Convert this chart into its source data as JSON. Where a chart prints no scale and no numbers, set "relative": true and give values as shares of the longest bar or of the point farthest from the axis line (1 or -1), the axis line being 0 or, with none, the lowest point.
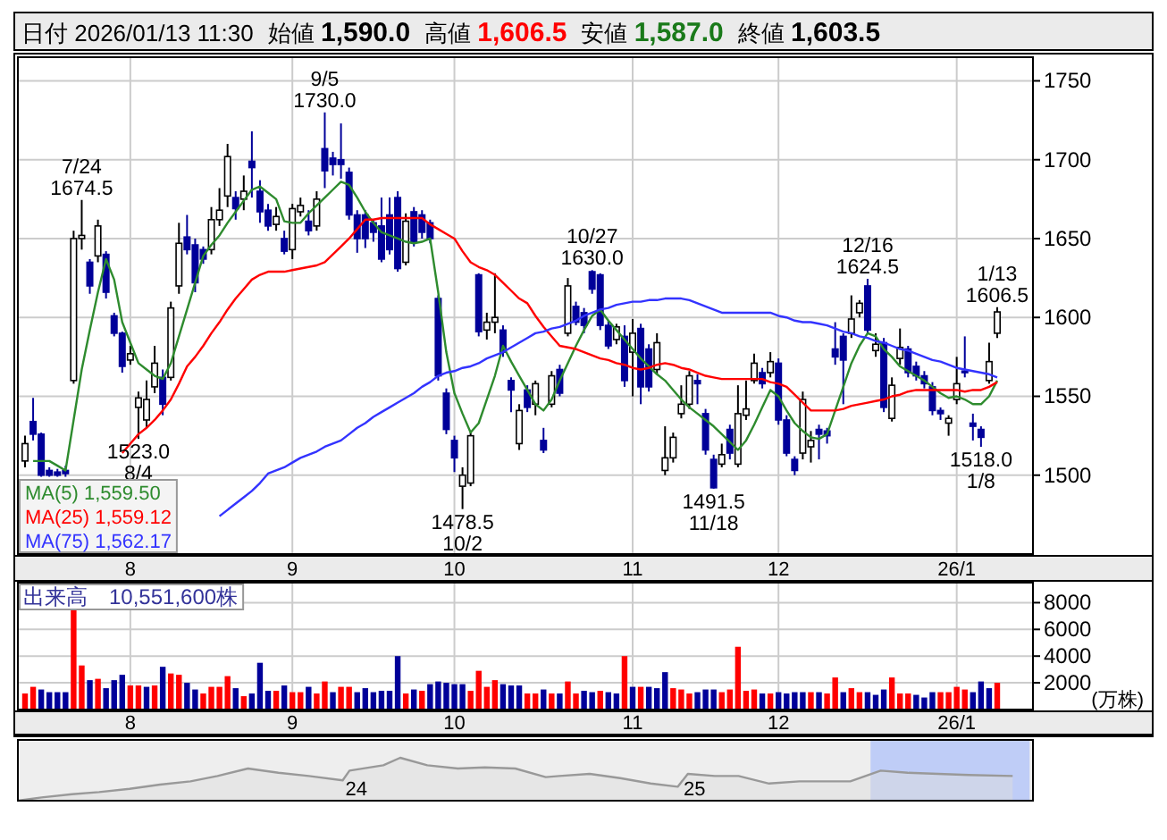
{
  "chart_data": [
    {
      "type": "candlestick",
      "title": "日付 2026/01/13 11:30",
      "annotations": [
        "始値 **1,590.0**",
        "高値 **1,606.5**",
        "安値 **1,587.0**",
        "終値 **1,603.5**",
        {
          "text": "7/24 1674.5",
          "y": 1674.5
        },
        {
          "text": "1523.0 8/4",
          "y": 1523
        },
        {
          "text": "9/5 1730.0",
          "y": 1730
        },
        {
          "text": "1478.5 10/2",
          "y": 1478.5
        },
        {
          "text": "10/27 1630.0",
          "y": 1630
        },
        {
          "text": "1491.5 11/18",
          "y": 1491.5
        },
        {
          "text": "12/16 1624.5",
          "y": 1624.5
        },
        {
          "text": "1518.0 1/8",
          "y": 1518
        },
        {
          "text": "1/13 1606.5",
          "y": 1606.5
        }
      ],
      "categories": [
        null,
        null,
        null,
        null,
        null,
        null,
        null,
        null,
        null,
        null,
        null,
        null,
        null,
        "8",
        null,
        null,
        null,
        null,
        null,
        null,
        null,
        null,
        null,
        null,
        null,
        null,
        null,
        null,
        null,
        null,
        null,
        null,
        null,
        "9",
        null,
        null,
        null,
        null,
        null,
        null,
        null,
        null,
        null,
        null,
        null,
        null,
        null,
        null,
        null,
        null,
        null,
        null,
        null,
        "10",
        null,
        null,
        null,
        null,
        null,
        null,
        null,
        null,
        null,
        null,
        null,
        null,
        null,
        null,
        null,
        null,
        null,
        null,
        null,
        null,
        null,
        "11",
        null,
        null,
        null,
        null,
        null,
        null,
        null,
        null,
        null,
        null,
        null,
        null,
        null,
        null,
        null,
        null,
        null,
        "12",
        null,
        null,
        null,
        null,
        null,
        null,
        null,
        null,
        null,
        null,
        null,
        null,
        null,
        null,
        null,
        null,
        null,
        null,
        null,
        null,
        null,
        "26/1",
        null,
        null,
        null,
        null,
        null
      ],
      "ylim": [
        1450,
        1765
      ],
      "yticks": [
        1500,
        1550,
        1600,
        1650,
        1700,
        1750
      ],
      "grid": true,
      "legend": "bottom left",
      "series": [
        {
          "colors": [
            "#ffffff",
            "#000099",
            "#000099",
            "#000099",
            "#000099",
            "#000099",
            "#ffffff",
            "#ffffff",
            "#000099",
            "#ffffff",
            "#000099",
            "#000099",
            "#000099",
            "#ffffff",
            "#ffffff",
            "#ffffff",
            "#ffffff",
            "#000099",
            "#ffffff",
            "#ffffff",
            "#000099",
            "#000099",
            "#000099",
            "#ffffff",
            "#ffffff",
            "#ffffff",
            "#000099",
            "#ffffff",
            "#000099",
            "#000099",
            "#000099",
            "#ffffff",
            "#000099",
            "#ffffff",
            "#ffffff",
            "#000099",
            "#ffffff",
            "#000099",
            "#000099",
            "#000099",
            "#000099",
            "#000099",
            "#000099",
            "#000099",
            "#000099",
            "#000099",
            "#000099",
            "#ffffff",
            "#000099",
            "#000099",
            "#000099",
            "#000099",
            "#000099",
            "#000099",
            "#ffffff",
            "#ffffff",
            "#000099",
            "#ffffff",
            "#ffffff",
            "#000099",
            "#000099",
            "#ffffff",
            "#000099",
            "#ffffff",
            "#000099",
            "#ffffff",
            "#000099",
            "#ffffff",
            "#000099",
            "#000099",
            "#000099",
            "#000099",
            "#000099",
            "#ffffff",
            "#000099",
            "#ffffff",
            "#000099",
            "#000099",
            "#ffffff",
            "#ffffff",
            "#ffffff",
            "#ffffff",
            "#ffffff",
            "#000099",
            "#000099",
            "#000099",
            "#ffffff",
            "#000099",
            "#ffffff",
            "#ffffff",
            "#ffffff",
            "#000099",
            "#ffffff",
            "#000099",
            "#000099",
            "#000099",
            "#ffffff",
            "#ffffff",
            "#000099",
            "#000099",
            "#000099",
            "#000099",
            "#ffffff",
            "#ffffff",
            "#000099",
            "#ffffff",
            "#000099",
            "#ffffff",
            "#ffffff",
            "#000099",
            "#000099",
            "#000099",
            "#000099",
            "#000099",
            "#ffffff",
            "#ffffff",
            "#000099",
            "#000099",
            "#000099",
            "#ffffff",
            "#ffffff"
          ],
          "ohlc": [
            [
              1509,
              1525,
              1505,
              1520
            ],
            [
              1534,
              1549,
              1522,
              1526
            ],
            [
              1526,
              1527,
              1499,
              1500
            ],
            [
              1503,
              1505,
              1499,
              1500
            ],
            [
              1502,
              1504,
              1499,
              1500
            ],
            [
              1503,
              1506,
              1499,
              1501
            ],
            [
              1560,
              1655,
              1558,
              1650
            ],
            [
              1650,
              1674.5,
              1643,
              1652
            ],
            [
              1635,
              1637,
              1615,
              1620
            ],
            [
              1639,
              1662,
              1635,
              1658
            ],
            [
              1640,
              1642,
              1612,
              1616
            ],
            [
              1601,
              1603,
              1588,
              1590
            ],
            [
              1590,
              1591,
              1565,
              1569
            ],
            [
              1573,
              1582,
              1570,
              1577
            ],
            [
              1543,
              1553,
              1523,
              1549
            ],
            [
              1535,
              1560,
              1530,
              1548
            ],
            [
              1556,
              1582,
              1552,
              1571
            ],
            [
              1562,
              1567,
              1538,
              1545
            ],
            [
              1562,
              1610,
              1560,
              1606
            ],
            [
              1620,
              1660,
              1615,
              1647
            ],
            [
              1651,
              1665,
              1640,
              1643
            ],
            [
              1646,
              1650,
              1616,
              1622
            ],
            [
              1643,
              1645,
              1634,
              1637
            ],
            [
              1643,
              1670,
              1640,
              1662
            ],
            [
              1662,
              1682,
              1658,
              1668
            ],
            [
              1677,
              1710,
              1670,
              1702
            ],
            [
              1676,
              1680,
              1662,
              1669
            ],
            [
              1675,
              1690,
              1668,
              1680
            ],
            [
              1699,
              1718,
              1676,
              1695
            ],
            [
              1680,
              1687,
              1660,
              1667
            ],
            [
              1668,
              1672,
              1655,
              1658
            ],
            [
              1659,
              1670,
              1655,
              1664
            ],
            [
              1650,
              1655,
              1640,
              1642
            ],
            [
              1643,
              1672,
              1637,
              1669
            ],
            [
              1667,
              1676,
              1664,
              1671
            ],
            [
              1661,
              1668,
              1652,
              1655
            ],
            [
              1658,
              1680,
              1655,
              1675
            ],
            [
              1707,
              1730,
              1682,
              1693
            ],
            [
              1701,
              1705,
              1690,
              1697
            ],
            [
              1700,
              1723,
              1688,
              1697
            ],
            [
              1692,
              1695,
              1662,
              1665
            ],
            [
              1665,
              1668,
              1641,
              1650
            ],
            [
              1665,
              1668,
              1644,
              1650
            ],
            [
              1660,
              1662,
              1648,
              1654
            ],
            [
              1658,
              1676,
              1635,
              1637
            ],
            [
              1665,
              1676,
              1640,
              1643
            ],
            [
              1676,
              1680,
              1629,
              1631
            ],
            [
              1635,
              1666,
              1633,
              1661
            ],
            [
              1667,
              1670,
              1645,
              1648
            ],
            [
              1665,
              1668,
              1650,
              1654
            ],
            [
              1660,
              1662,
              1647,
              1650
            ],
            [
              1612,
              1614,
              1560,
              1563
            ],
            [
              1552,
              1555,
              1526,
              1529
            ],
            [
              1522,
              1525,
              1502,
              1511
            ],
            [
              1493,
              1505,
              1478.5,
              1500
            ],
            [
              1495,
              1527,
              1493,
              1525
            ],
            [
              1627,
              1628,
              1588,
              1591
            ],
            [
              1592,
              1603,
              1586,
              1597
            ],
            [
              1597,
              1628,
              1590,
              1600
            ],
            [
              1592,
              1595,
              1575,
              1578
            ],
            [
              1560,
              1562,
              1540,
              1554
            ],
            [
              1520,
              1545,
              1516,
              1541
            ],
            [
              1554,
              1557,
              1540,
              1543
            ],
            [
              1545,
              1560,
              1538,
              1558
            ],
            [
              1522,
              1530,
              1514,
              1516
            ],
            [
              1545,
              1566,
              1543,
              1563
            ],
            [
              1567,
              1570,
              1550,
              1552
            ],
            [
              1590,
              1625,
              1588,
              1620
            ],
            [
              1607,
              1610,
              1595,
              1597
            ],
            [
              1603,
              1606,
              1590,
              1595
            ],
            [
              1629,
              1630,
              1615,
              1618
            ],
            [
              1627,
              1628,
              1592,
              1595
            ],
            [
              1595,
              1598,
              1580,
              1582
            ],
            [
              1586,
              1596,
              1583,
              1594
            ],
            [
              1588,
              1595,
              1556,
              1560
            ],
            [
              1578,
              1599,
              1550,
              1590
            ],
            [
              1593,
              1596,
              1545,
              1556
            ],
            [
              1580,
              1583,
              1553,
              1556
            ],
            [
              1567,
              1590,
              1564,
              1584
            ],
            [
              1503,
              1531,
              1500,
              1511
            ],
            [
              1511,
              1527,
              1508,
              1524
            ],
            [
              1539,
              1557,
              1536,
              1545
            ],
            [
              1545,
              1566,
              1542,
              1563
            ],
            [
              1560,
              1564,
              1545,
              1558
            ],
            [
              1539,
              1542,
              1513,
              1516
            ],
            [
              1510,
              1513,
              1491.5,
              1492
            ],
            [
              1507,
              1520,
              1505,
              1513
            ],
            [
              1529,
              1532,
              1510,
              1514
            ],
            [
              1507,
              1557,
              1505,
              1539
            ],
            [
              1538,
              1560,
              1535,
              1542
            ],
            [
              1560,
              1577,
              1558,
              1571
            ],
            [
              1565,
              1568,
              1555,
              1558
            ],
            [
              1565,
              1578,
              1562,
              1572
            ],
            [
              1571,
              1574,
              1532,
              1535
            ],
            [
              1535,
              1538,
              1512,
              1514
            ],
            [
              1510,
              1512,
              1500,
              1503
            ],
            [
              1514,
              1553,
              1510,
              1548
            ],
            [
              1518,
              1528,
              1508,
              1522
            ],
            [
              1529,
              1532,
              1510,
              1526
            ],
            [
              1528,
              1530,
              1520,
              1525
            ],
            [
              1580,
              1597,
              1570,
              1575
            ],
            [
              1588,
              1590,
              1545,
              1573
            ],
            [
              1590,
              1614,
              1587,
              1599
            ],
            [
              1603,
              1611,
              1600,
              1609
            ],
            [
              1620,
              1624.5,
              1590,
              1592
            ],
            [
              1579,
              1590,
              1575,
              1583
            ],
            [
              1584,
              1587,
              1540,
              1543
            ],
            [
              1536,
              1562,
              1534,
              1557
            ],
            [
              1574,
              1593,
              1570,
              1581
            ],
            [
              1580,
              1582,
              1562,
              1565
            ],
            [
              1569,
              1572,
              1560,
              1563
            ],
            [
              1563,
              1566,
              1555,
              1558
            ],
            [
              1556,
              1559,
              1538,
              1541
            ],
            [
              1541,
              1543,
              1535,
              1539
            ],
            [
              1533,
              1538,
              1525,
              1536
            ],
            [
              1548,
              1575,
              1545,
              1558
            ],
            [
              1566,
              1588,
              1562,
              1565
            ],
            [
              1533,
              1539,
              1522,
              1531
            ],
            [
              1529,
              1531,
              1518,
              1524
            ],
            [
              1560,
              1584,
              1558,
              1572
            ],
            [
              1590,
              1606.5,
              1587,
              1603.5
            ]
          ]
        },
        {
          "type": "line",
          "name": "MA(5) 1,559.50",
          "color": "#2e8b2e",
          "values": [
            null,
            1509,
            1509,
            1509,
            1506,
            1503,
            1535,
            1567,
            1592,
            1616,
            1637,
            1624,
            1597,
            1584,
            1571,
            1567,
            1563,
            1561,
            1571,
            1588,
            1605,
            1622,
            1639,
            1646,
            1652,
            1660,
            1667,
            1674,
            1681,
            1683,
            1679,
            1675,
            1661,
            1660,
            1660,
            1666,
            1671,
            1676,
            1681,
            1686,
            1684,
            1676,
            1667,
            1660,
            1654,
            1652,
            1650,
            1648,
            1647,
            1648,
            1650,
            1616,
            1578,
            1552,
            1539,
            1527,
            1533,
            1548,
            1563,
            1582,
            1572,
            1563,
            1554,
            1545,
            1541,
            1548,
            1560,
            1571,
            1582,
            1592,
            1601,
            1605,
            1598,
            1592,
            1586,
            1580,
            1574,
            1569,
            1564,
            1560,
            1554,
            1548,
            1543,
            1539,
            1535,
            1531,
            1526,
            1521,
            1516,
            1522,
            1532,
            1543,
            1554,
            1550,
            1541,
            1533,
            1528,
            1524,
            1523,
            1526,
            1541,
            1556,
            1571,
            1582,
            1590,
            1588,
            1580,
            1575,
            1569,
            1566,
            1563,
            1560,
            1556,
            1552,
            1549,
            1550,
            1548,
            1545,
            1545,
            1550,
            1560
          ]
        },
        {
          "type": "line",
          "name": "MA(25) 1,559.12",
          "color": "#ff0000",
          "values": [
            null,
            null,
            null,
            null,
            null,
            null,
            null,
            null,
            null,
            null,
            null,
            null,
            1514,
            1520,
            1526,
            1530,
            1535,
            1541,
            1548,
            1558,
            1569,
            1575,
            1582,
            1590,
            1597,
            1605,
            1612,
            1618,
            1624,
            1627,
            1629,
            1629,
            1629,
            1630,
            1631,
            1632,
            1633,
            1635,
            1640,
            1645,
            1650,
            1656,
            1662,
            1662,
            1663,
            1663,
            1663,
            1663,
            1663,
            1663,
            1659,
            1656,
            1653,
            1650,
            1642,
            1635,
            1632,
            1630,
            1627,
            1622,
            1617,
            1612,
            1609,
            1601,
            1594,
            1588,
            1582,
            1581,
            1580,
            1578,
            1576,
            1574,
            1573,
            1571,
            1570,
            1568,
            1567,
            1568,
            1570,
            1571,
            1570,
            1568,
            1567,
            1565,
            1563,
            1562,
            1561,
            1561,
            1561,
            1561,
            1561,
            1561,
            1559,
            1558,
            1556,
            1551,
            1546,
            1541,
            1541,
            1541,
            1541,
            1542,
            1544,
            1545,
            1546,
            1547,
            1548,
            1550,
            1551,
            1553,
            1554,
            1554,
            1554,
            1554,
            1554,
            1554,
            1553,
            1554,
            1554,
            1556,
            1559
          ]
        },
        {
          "type": "line",
          "name": "MA(75) 1,562.17",
          "color": "#3333ff",
          "values": [
            null,
            null,
            null,
            null,
            null,
            null,
            null,
            null,
            null,
            null,
            null,
            null,
            null,
            null,
            null,
            null,
            null,
            null,
            null,
            null,
            null,
            null,
            null,
            null,
            1474,
            1478,
            1482,
            1486,
            1490,
            1495,
            1501,
            1503,
            1505,
            1508,
            1511,
            1513,
            1515,
            1518,
            1520,
            1522,
            1526,
            1530,
            1533,
            1537,
            1540,
            1543,
            1546,
            1549,
            1552,
            1556,
            1559,
            1563,
            1565,
            1566,
            1568,
            1569,
            1571,
            1574,
            1576,
            1578,
            1581,
            1584,
            1587,
            1590,
            1591,
            1593,
            1594,
            1596,
            1598,
            1601,
            1603,
            1605,
            1606,
            1608,
            1609,
            1610,
            1610,
            1611,
            1611,
            1612,
            1612,
            1612,
            1611,
            1609,
            1607,
            1605,
            1603,
            1603,
            1603,
            1603,
            1603,
            1603,
            1603,
            1601,
            1600,
            1598,
            1597,
            1597,
            1596,
            1595,
            1593,
            1591,
            1590,
            1588,
            1587,
            1585,
            1584,
            1582,
            1580,
            1579,
            1577,
            1575,
            1573,
            1572,
            1570,
            1568,
            1567,
            1566,
            1565,
            1564,
            1562
          ]
        }
      ]
    },
    {
      "type": "bar",
      "title": "出来高　10,551,600株",
      "ylabel": "(万株)",
      "categories": [
        null,
        null,
        null,
        null,
        null,
        null,
        null,
        null,
        null,
        null,
        null,
        null,
        null,
        "8",
        null,
        null,
        null,
        null,
        null,
        null,
        null,
        null,
        null,
        null,
        null,
        null,
        null,
        null,
        null,
        null,
        null,
        null,
        null,
        "9",
        null,
        null,
        null,
        null,
        null,
        null,
        null,
        null,
        null,
        null,
        null,
        null,
        null,
        null,
        null,
        null,
        null,
        null,
        null,
        "10",
        null,
        null,
        null,
        null,
        null,
        null,
        null,
        null,
        null,
        null,
        null,
        null,
        null,
        null,
        null,
        null,
        null,
        null,
        null,
        null,
        null,
        "11",
        null,
        null,
        null,
        null,
        null,
        null,
        null,
        null,
        null,
        null,
        null,
        null,
        null,
        null,
        null,
        null,
        null,
        "12",
        null,
        null,
        null,
        null,
        null,
        null,
        null,
        null,
        null,
        null,
        null,
        null,
        null,
        null,
        null,
        null,
        null,
        null,
        null,
        null,
        null,
        "26/1",
        null,
        null,
        null,
        null,
        null
      ],
      "ylim": [
        0,
        9500
      ],
      "yticks": [
        2000,
        4000,
        6000,
        8000
      ],
      "grid": true,
      "values": [
        1200,
        1700,
        1500,
        1300,
        1300,
        1300,
        7500,
        3300,
        2200,
        2300,
        1600,
        2200,
        2600,
        1800,
        1800,
        1700,
        1800,
        3200,
        2700,
        2600,
        2000,
        1500,
        1200,
        1700,
        1700,
        2500,
        1600,
        1000,
        1200,
        3500,
        1400,
        1400,
        1800,
        1300,
        1300,
        1700,
        1200,
        2100,
        1300,
        1700,
        1700,
        1300,
        1600,
        1300,
        1400,
        1400,
        4000,
        1200,
        1500,
        1400,
        1900,
        2100,
        2000,
        1900,
        1900,
        1400,
        2900,
        1700,
        2200,
        1900,
        1800,
        1800,
        1200,
        1200,
        1500,
        1200,
        1200,
        2100,
        1200,
        1400,
        1300,
        1400,
        1300,
        1200,
        4000,
        1700,
        1700,
        1700,
        1600,
        2800,
        1600,
        1500,
        1200,
        1300,
        1500,
        1500,
        1300,
        1500,
        4700,
        1400,
        1500,
        1200,
        1200,
        1300,
        1200,
        1300,
        1300,
        1300,
        1300,
        1200,
        2400,
        1300,
        1600,
        1300,
        1300,
        1100,
        1500,
        2400,
        1200,
        1200,
        1100,
        900,
        1300,
        1300,
        1300,
        1700,
        1500,
        1300,
        2100,
        1600,
        2000
      ],
      "colors": [
        "#ff0000",
        "#ff0000",
        "#000099",
        "#000099",
        "#000099",
        "#000099",
        "#ff0000",
        "#ff0000",
        "#000099",
        "#ff0000",
        "#000099",
        "#000099",
        "#000099",
        "#ff0000",
        "#ff0000",
        "#000099",
        "#ff0000",
        "#000099",
        "#ff0000",
        "#ff0000",
        "#000099",
        "#000099",
        "#ff0000",
        "#ff0000",
        "#ff0000",
        "#ff0000",
        "#000099",
        "#ff0000",
        "#000099",
        "#000099",
        "#000099",
        "#ff0000",
        "#000099",
        "#ff0000",
        "#ff0000",
        "#000099",
        "#ff0000",
        "#ff0000",
        "#000099",
        "#ff0000",
        "#ff0000",
        "#000099",
        "#000099",
        "#000099",
        "#000099",
        "#000099",
        "#000099",
        "#ff0000",
        "#000099",
        "#ff0000",
        "#000099",
        "#000099",
        "#000099",
        "#000099",
        "#000099",
        "#ff0000",
        "#ff0000",
        "#ff0000",
        "#ff0000",
        "#000099",
        "#000099",
        "#000099",
        "#ff0000",
        "#ff0000",
        "#000099",
        "#ff0000",
        "#000099",
        "#ff0000",
        "#ff0000",
        "#000099",
        "#000099",
        "#ff0000",
        "#000099",
        "#000099",
        "#ff0000",
        "#000099",
        "#ff0000",
        "#000099",
        "#000099",
        "#000099",
        "#ff0000",
        "#ff0000",
        "#ff0000",
        "#000099",
        "#000099",
        "#000099",
        "#ff0000",
        "#ff0000",
        "#ff0000",
        "#ff0000",
        "#ff0000",
        "#000099",
        "#ff0000",
        "#000099",
        "#000099",
        "#000099",
        "#000099",
        "#ff0000",
        "#000099",
        "#ff0000",
        "#ff0000",
        "#000099",
        "#ff0000",
        "#ff0000",
        "#000099",
        "#000099",
        "#000099",
        "#ff0000",
        "#ff0000",
        "#ff0000",
        "#000099",
        "#000099",
        "#000099",
        "#ff0000",
        "#ff0000",
        "#ff0000",
        "#ff0000",
        "#000099",
        "#000099",
        "#000099",
        "#ff0000"
      ]
    },
    {
      "type": "area",
      "relative": true,
      "color": "#999999",
      "xlim": [
        2023.0,
        2026.0
      ],
      "xticks": [
        {
          "value": 2024,
          "label": "24"
        },
        {
          "value": 2025,
          "label": "25"
        }
      ],
      "bands": [
        {
          "axis": "x",
          "from": 2025.52,
          "to": 2025.99,
          "color": "#bfcdf7"
        }
      ],
      "x": [
        2023.0,
        2023.07,
        2023.16,
        2023.24,
        2023.33,
        2023.42,
        2023.51,
        2023.59,
        2023.68,
        2023.77,
        2023.86,
        2023.96,
        2023.98,
        2024.08,
        2024.13,
        2024.21,
        2024.3,
        2024.38,
        2024.47,
        2024.56,
        2024.6,
        2024.69,
        2024.78,
        2024.87,
        2024.95,
        2024.98,
        2025.06,
        2025.13,
        2025.22,
        2025.31,
        2025.39,
        2025.46,
        2025.55,
        2025.63,
        2025.72,
        2025.81,
        2025.94
      ],
      "values": [
        0,
        0.075,
        0.15,
        0.2,
        0.275,
        0.375,
        0.45,
        0.575,
        0.75,
        0.65,
        0.575,
        0.475,
        0.7,
        0.825,
        1,
        0.825,
        0.75,
        0.775,
        0.75,
        0.55,
        0.575,
        0.625,
        0.525,
        0.4,
        0.325,
        0.625,
        0.575,
        0.575,
        0.4,
        0.45,
        0.45,
        0.45,
        0.7,
        0.65,
        0.625,
        0.6,
        0.575
      ]
    }
  ]
}
